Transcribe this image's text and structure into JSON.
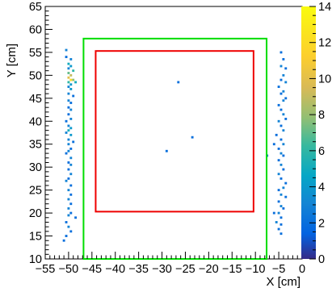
{
  "chart_data": {
    "type": "heatmap",
    "title": "",
    "xlabel": "X [cm]",
    "ylabel": "Y [cm]",
    "xlim": [
      -55,
      0
    ],
    "ylim": [
      10,
      65
    ],
    "x_ticks": [
      "−55",
      "−50",
      "−45",
      "−40",
      "−35",
      "−30",
      "−25",
      "−20",
      "−15",
      "−10",
      "−5",
      "0"
    ],
    "x_tick_values": [
      -55,
      -50,
      -45,
      -40,
      -35,
      -30,
      -25,
      -20,
      -15,
      -10,
      -5,
      0
    ],
    "y_ticks": [
      "10",
      "15",
      "20",
      "25",
      "30",
      "35",
      "40",
      "45",
      "50",
      "55",
      "60",
      "65"
    ],
    "y_tick_values": [
      10,
      15,
      20,
      25,
      30,
      35,
      40,
      45,
      50,
      55,
      60,
      65
    ],
    "colorbar": {
      "min": 0,
      "max": 14,
      "ticks": [
        "0",
        "2",
        "4",
        "6",
        "8",
        "10",
        "12",
        "14"
      ],
      "tick_values": [
        0,
        2,
        4,
        6,
        8,
        10,
        12,
        14
      ]
    },
    "rectangles": [
      {
        "color": "#00dd00",
        "x": [
          -46.8,
          -7.6
        ],
        "y": [
          10,
          58
        ]
      },
      {
        "color": "#ee0000",
        "x": [
          -44.2,
          -10.4
        ],
        "y": [
          20.3,
          55.3
        ]
      }
    ],
    "cell_size": 0.5,
    "cells_description": "[x, y, count]",
    "cells": [
      [
        -50.5,
        55.5,
        3
      ],
      [
        -50.5,
        54,
        2
      ],
      [
        -49.5,
        53.5,
        3
      ],
      [
        -50,
        52.5,
        5
      ],
      [
        -49.5,
        52,
        4
      ],
      [
        -50,
        51.5,
        3
      ],
      [
        -49,
        51,
        6
      ],
      [
        -50,
        50.5,
        7
      ],
      [
        -49.5,
        50,
        9
      ],
      [
        -50,
        49.5,
        10
      ],
      [
        -49.5,
        49,
        12
      ],
      [
        -49,
        49,
        8
      ],
      [
        -50,
        48.5,
        6
      ],
      [
        -48.5,
        48.5,
        5
      ],
      [
        -49.5,
        48,
        4
      ],
      [
        -50,
        47.5,
        3
      ],
      [
        -49.5,
        47,
        4
      ],
      [
        -50,
        46,
        3
      ],
      [
        -49,
        45.5,
        2
      ],
      [
        -50,
        44.5,
        3
      ],
      [
        -49.5,
        44,
        2
      ],
      [
        -50,
        43,
        2
      ],
      [
        -49.5,
        42.5,
        3
      ],
      [
        -50,
        41.5,
        2
      ],
      [
        -49.5,
        40.5,
        3
      ],
      [
        -50.5,
        40,
        2
      ],
      [
        -50,
        39,
        3
      ],
      [
        -49.5,
        38.5,
        4
      ],
      [
        -50,
        38,
        5
      ],
      [
        -50.5,
        37.5,
        3
      ],
      [
        -49.5,
        37,
        4
      ],
      [
        -50,
        36,
        3
      ],
      [
        -49,
        35.5,
        2
      ],
      [
        -50,
        35,
        3
      ],
      [
        -49.5,
        34,
        2
      ],
      [
        -50,
        33.5,
        3
      ],
      [
        -50.5,
        33,
        2
      ],
      [
        -49.5,
        32,
        3
      ],
      [
        -50,
        31,
        2
      ],
      [
        -49.5,
        30.5,
        3
      ],
      [
        -50,
        29.5,
        2
      ],
      [
        -49.5,
        28.5,
        3
      ],
      [
        -50,
        27.5,
        2
      ],
      [
        -50.5,
        27,
        3
      ],
      [
        -49.5,
        26,
        2
      ],
      [
        -50,
        25,
        3
      ],
      [
        -49.5,
        24,
        2
      ],
      [
        -50,
        23,
        3
      ],
      [
        -49.5,
        22,
        2
      ],
      [
        -50,
        21,
        3
      ],
      [
        -49.5,
        20,
        2
      ],
      [
        -50,
        19.5,
        3
      ],
      [
        -48.5,
        19,
        2
      ],
      [
        -50.5,
        18,
        2
      ],
      [
        -50,
        17,
        3
      ],
      [
        -49.5,
        16,
        2
      ],
      [
        -50.5,
        15,
        2
      ],
      [
        -51,
        14,
        2
      ],
      [
        -4.5,
        55,
        2
      ],
      [
        -4,
        53.5,
        2
      ],
      [
        -4.5,
        52,
        3
      ],
      [
        -3.5,
        51.5,
        2
      ],
      [
        -4,
        50,
        3
      ],
      [
        -4.5,
        49,
        2
      ],
      [
        -3.5,
        48.5,
        3
      ],
      [
        -5,
        47.5,
        2
      ],
      [
        -4,
        46.5,
        3
      ],
      [
        -4.5,
        46,
        2
      ],
      [
        -3.5,
        45,
        2
      ],
      [
        -4,
        44.5,
        3
      ],
      [
        -5,
        43.5,
        2
      ],
      [
        -4.5,
        42.5,
        2
      ],
      [
        -4,
        41.5,
        3
      ],
      [
        -3.5,
        40.5,
        2
      ],
      [
        -5,
        40,
        3
      ],
      [
        -4.5,
        39,
        2
      ],
      [
        -4,
        38,
        3
      ],
      [
        -5.5,
        37,
        2
      ],
      [
        -4.5,
        36,
        2
      ],
      [
        -4,
        35,
        3
      ],
      [
        -5,
        34,
        2
      ],
      [
        -4.5,
        33,
        3
      ],
      [
        -4,
        32.5,
        2
      ],
      [
        -5,
        31.5,
        2
      ],
      [
        -4.5,
        30.5,
        3
      ],
      [
        -4,
        29.5,
        2
      ],
      [
        -5,
        28.5,
        3
      ],
      [
        -4.5,
        27.5,
        2
      ],
      [
        -3.5,
        26.5,
        2
      ],
      [
        -4,
        25.5,
        3
      ],
      [
        -5,
        25,
        2
      ],
      [
        -4.5,
        24,
        3
      ],
      [
        -3.5,
        23.5,
        2
      ],
      [
        -5,
        22.5,
        2
      ],
      [
        -4.5,
        21.5,
        3
      ],
      [
        -4,
        21,
        2
      ],
      [
        -5,
        20,
        3
      ],
      [
        -4.5,
        19,
        2
      ],
      [
        -5.5,
        18,
        3
      ],
      [
        -4.5,
        17.5,
        2
      ],
      [
        -5,
        16.5,
        2
      ],
      [
        -4.5,
        15.5,
        2
      ],
      [
        -26.5,
        48.5,
        2
      ],
      [
        -29,
        33.5,
        2
      ],
      [
        -23.5,
        36.5,
        2
      ],
      [
        -7.5,
        32.5,
        2
      ],
      [
        -6,
        35,
        2
      ],
      [
        -6,
        20,
        2
      ]
    ]
  }
}
